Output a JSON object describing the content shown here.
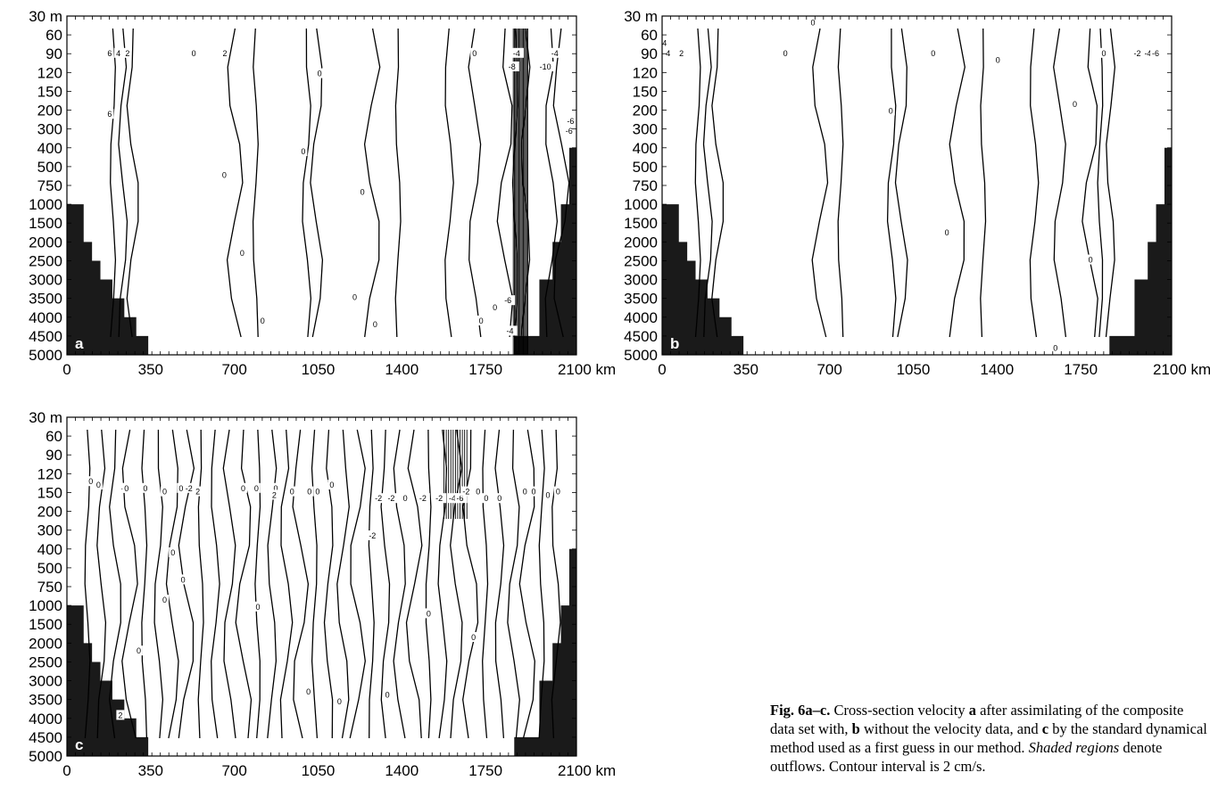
{
  "chart_data": [
    {
      "type": "contour",
      "panel_label": "a",
      "x_ticks": [
        "0",
        "350",
        "700",
        "1050",
        "1400",
        "1750",
        "2100 km"
      ],
      "x_tick_values": [
        0,
        350,
        700,
        1050,
        1400,
        1750,
        2100
      ],
      "y_ticks": [
        "30 m",
        "60",
        "90",
        "120",
        "150",
        "200",
        "300",
        "400",
        "500",
        "750",
        "1000",
        "1500",
        "2000",
        "2500",
        "3000",
        "3500",
        "4000",
        "4500",
        "5000"
      ],
      "xlim": [
        0,
        2130
      ],
      "bathymetry_left": [
        [
          0,
          500
        ],
        [
          70,
          1000
        ],
        [
          105,
          2000
        ],
        [
          140,
          2500
        ],
        [
          190,
          3000
        ],
        [
          240,
          3500
        ],
        [
          290,
          4000
        ],
        [
          340,
          4500
        ],
        [
          560,
          5000
        ]
      ],
      "bathymetry_right": [
        [
          1870,
          4500
        ],
        [
          1975,
          3000
        ],
        [
          2030,
          2000
        ],
        [
          2065,
          1000
        ],
        [
          2100,
          400
        ]
      ],
      "contours": [
        {
          "x": [
            [
              62,
              60
            ],
            [
              68,
              300
            ],
            [
              70,
              500
            ]
          ],
          "label": "6"
        },
        {
          "x": [
            [
              88,
              60
            ],
            [
              92,
              300
            ],
            [
              88,
              500
            ]
          ],
          "label": "4"
        },
        {
          "x": [
            [
              108,
              60
            ],
            [
              110,
              200
            ],
            [
              105,
              400
            ]
          ],
          "label": "2"
        },
        {
          "x": [
            [
              275,
              60
            ],
            [
              278,
              200
            ],
            [
              280,
              300
            ]
          ],
          "label": "2"
        },
        {
          "x": [
            [
              590,
              60
            ],
            [
              575,
              750
            ],
            [
              540,
              2000
            ],
            [
              640,
              3000
            ],
            [
              615,
              3500
            ]
          ],
          "label": "0"
        },
        {
          "x": [
            [
              665,
              60
            ],
            [
              665,
              1000
            ],
            [
              662,
              4000
            ]
          ],
          "label": "0"
        },
        {
          "x": [
            [
              766,
              60
            ],
            [
              768,
              1500
            ],
            [
              778,
              4500
            ]
          ],
          "label": "0"
        },
        {
          "x": [
            [
              1165,
              60
            ],
            [
              1090,
              150
            ],
            [
              1060,
              300
            ],
            [
              1100,
              1000
            ],
            [
              1110,
              1500
            ]
          ],
          "label": "0"
        },
        {
          "x": [
            [
              1005,
              200
            ],
            [
              1018,
              500
            ],
            [
              1030,
              1000
            ],
            [
              1010,
              200
            ]
          ],
          "label": "0"
        },
        {
          "x": [
            [
              1250,
              200
            ],
            [
              1290,
              300
            ],
            [
              1300,
              3000
            ],
            [
              1290,
              5000
            ]
          ],
          "label": "0"
        },
        {
          "x": [
            [
              1405,
              60
            ],
            [
              1400,
              2000
            ],
            [
              1398,
              5000
            ]
          ],
          "label": "0"
        },
        {
          "x": [
            [
              1702,
              60
            ],
            [
              1705,
              1500
            ],
            [
              1700,
              5000
            ]
          ],
          "label": "0"
        },
        {
          "x": [
            [
              1785,
              200
            ],
            [
              1790,
              1000
            ],
            [
              1810,
              4500
            ]
          ],
          "label": "0"
        },
        {
          "x": [
            [
              1945,
              60
            ],
            [
              2060,
              400
            ],
            [
              2100,
              400
            ]
          ],
          "label": "-10"
        },
        {
          "x": [
            [
              1925,
              60
            ],
            [
              2000,
              300
            ],
            [
              2030,
              750
            ]
          ],
          "label": "-8"
        },
        {
          "x": [
            [
              1905,
              60
            ],
            [
              1960,
              400
            ],
            [
              2000,
              1000
            ]
          ],
          "label": "-6"
        }
      ],
      "contour_labels": [
        "6",
        "4",
        "2",
        "2",
        "6",
        "0",
        "0",
        "0",
        "0",
        "0",
        "0",
        "0",
        "0",
        "0",
        "0",
        "0",
        "0",
        "-6",
        "-4",
        "-8",
        "-10",
        "-4",
        "-6",
        "-6",
        "-4"
      ]
    },
    {
      "type": "contour",
      "panel_label": "b",
      "x_ticks": [
        "0",
        "350",
        "700",
        "1050",
        "1400",
        "1750",
        "2100 km"
      ],
      "x_tick_values": [
        0,
        350,
        700,
        1050,
        1400,
        1750,
        2100
      ],
      "y_ticks": [
        "30 m",
        "60",
        "90",
        "120",
        "150",
        "200",
        "300",
        "400",
        "500",
        "750",
        "1000",
        "1500",
        "2000",
        "2500",
        "3000",
        "3500",
        "4000",
        "4500",
        "5000"
      ],
      "xlim": [
        0,
        2130
      ],
      "bathymetry_left": [
        [
          0,
          500
        ],
        [
          70,
          1000
        ],
        [
          105,
          2000
        ],
        [
          140,
          2500
        ],
        [
          190,
          3000
        ],
        [
          240,
          3500
        ],
        [
          290,
          4000
        ],
        [
          340,
          4500
        ],
        [
          560,
          5000
        ]
      ],
      "bathymetry_right": [
        [
          1870,
          4500
        ],
        [
          1975,
          3000
        ],
        [
          2030,
          2000
        ],
        [
          2065,
          1000
        ],
        [
          2100,
          400
        ]
      ],
      "contour_labels": [
        "4",
        "4",
        "2",
        "0",
        "0",
        "0",
        "0",
        "0",
        "0",
        "0",
        "0",
        "0",
        "0",
        "0",
        "-2",
        "-4",
        "-6"
      ]
    },
    {
      "type": "contour",
      "panel_label": "c",
      "x_ticks": [
        "0",
        "350",
        "700",
        "1050",
        "1400",
        "1750",
        "2100 km"
      ],
      "x_tick_values": [
        0,
        350,
        700,
        1050,
        1400,
        1750,
        2100
      ],
      "y_ticks": [
        "30 m",
        "60",
        "90",
        "120",
        "150",
        "200",
        "300",
        "400",
        "500",
        "750",
        "1000",
        "1500",
        "2000",
        "2500",
        "3000",
        "3500",
        "4000",
        "4500",
        "5000"
      ],
      "xlim": [
        0,
        2130
      ],
      "bathymetry_left": [
        [
          0,
          500
        ],
        [
          70,
          1000
        ],
        [
          105,
          2000
        ],
        [
          140,
          2500
        ],
        [
          190,
          3000
        ],
        [
          240,
          3500
        ],
        [
          290,
          4000
        ],
        [
          340,
          4500
        ],
        [
          560,
          5000
        ]
      ],
      "bathymetry_right": [
        [
          1870,
          4500
        ],
        [
          1975,
          3000
        ],
        [
          2030,
          2000
        ],
        [
          2065,
          1000
        ],
        [
          2100,
          400
        ]
      ],
      "contour_labels": [
        "0",
        "0",
        "-2",
        "0",
        "2",
        "0",
        "0",
        "0",
        "-2",
        "2",
        "0",
        "0",
        "0",
        "0",
        "0",
        "0",
        "0",
        "2",
        "0",
        "0",
        "0",
        "0",
        "-2",
        "-2",
        "-2",
        "0",
        "-2",
        "-2",
        "-4",
        "-6",
        "-2",
        "0",
        "0",
        "0",
        "0",
        "0",
        "0",
        "0",
        "0",
        "0",
        "0",
        "0",
        "0",
        "0"
      ]
    }
  ],
  "caption": {
    "figure": "Fig. 6a–c.",
    "text1": " Cross-section velocity ",
    "a": "a",
    "text2": " after assimilating of the composite data set with, ",
    "b": "b",
    "text3": " without the velocity data, and ",
    "c": "c",
    "text4": " by the standard dynamical method used as a first guess in our method. ",
    "shaded": "Shaded regions",
    "text5": " denote outflows. Contour interval is 2 cm/s."
  }
}
